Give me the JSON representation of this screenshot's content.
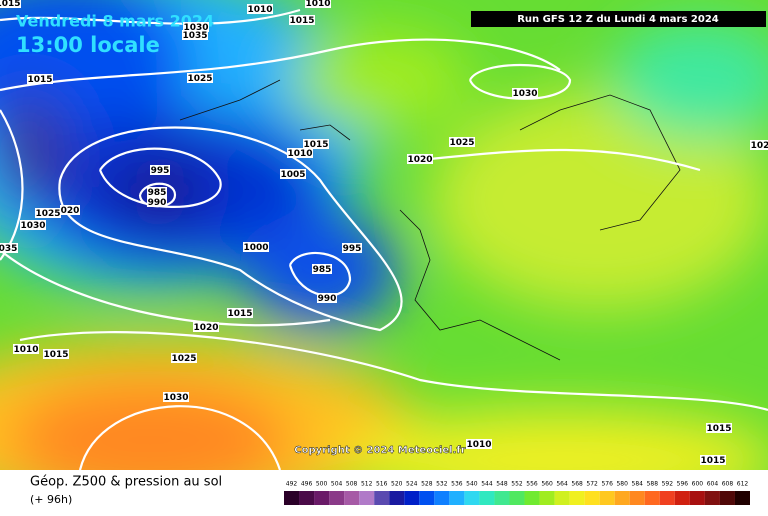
{
  "header": {
    "date": "Vendredi 8 mars 2024",
    "time": "13:00 locale",
    "run": "Run GFS 12 Z du Lundi 4 mars 2024"
  },
  "isobar_labels": [
    "1015",
    "1010",
    "1010",
    "1015",
    "1030",
    "1035",
    "1015",
    "1025",
    "1030",
    "1025",
    "1015",
    "1010",
    "1020",
    "995",
    "1005",
    "985",
    "990",
    "1025",
    "020",
    "1030",
    "035",
    "1000",
    "995",
    "985",
    "990",
    "1015",
    "1020",
    "1010",
    "1015",
    "1025",
    "1030",
    "1010",
    "1015",
    "1015",
    "102"
  ],
  "copyright": "Copyright © 2024 Meteociel.fr",
  "legend": {
    "title": "Géop. Z500 & pression au sol",
    "lead": "(+ 96h)",
    "scale": [
      {
        "label": "492",
        "color": "#2a0028"
      },
      {
        "label": "496",
        "color": "#4a0a48"
      },
      {
        "label": "500",
        "color": "#6a1a68"
      },
      {
        "label": "504",
        "color": "#8a3a88"
      },
      {
        "label": "508",
        "color": "#a65aa6"
      },
      {
        "label": "512",
        "color": "#b07ac8"
      },
      {
        "label": "516",
        "color": "#5a4ab0"
      },
      {
        "label": "520",
        "color": "#1a1aa0"
      },
      {
        "label": "524",
        "color": "#0020c8"
      },
      {
        "label": "528",
        "color": "#0050f0"
      },
      {
        "label": "532",
        "color": "#1080ff"
      },
      {
        "label": "536",
        "color": "#20b0ff"
      },
      {
        "label": "540",
        "color": "#30d8f0"
      },
      {
        "label": "544",
        "color": "#30e8c0"
      },
      {
        "label": "548",
        "color": "#40e890"
      },
      {
        "label": "552",
        "color": "#50e860"
      },
      {
        "label": "556",
        "color": "#70ea30"
      },
      {
        "label": "560",
        "color": "#a0ec20"
      },
      {
        "label": "564",
        "color": "#d0f020"
      },
      {
        "label": "568",
        "color": "#f0f020"
      },
      {
        "label": "572",
        "color": "#ffe020"
      },
      {
        "label": "576",
        "color": "#ffc820"
      },
      {
        "label": "580",
        "color": "#ffa820"
      },
      {
        "label": "584",
        "color": "#ff8820"
      },
      {
        "label": "588",
        "color": "#ff6820"
      },
      {
        "label": "592",
        "color": "#f04020"
      },
      {
        "label": "596",
        "color": "#d02010"
      },
      {
        "label": "600",
        "color": "#a81010"
      },
      {
        "label": "604",
        "color": "#801010"
      },
      {
        "label": "608",
        "color": "#500808"
      },
      {
        "label": "612",
        "color": "#200000"
      }
    ]
  }
}
